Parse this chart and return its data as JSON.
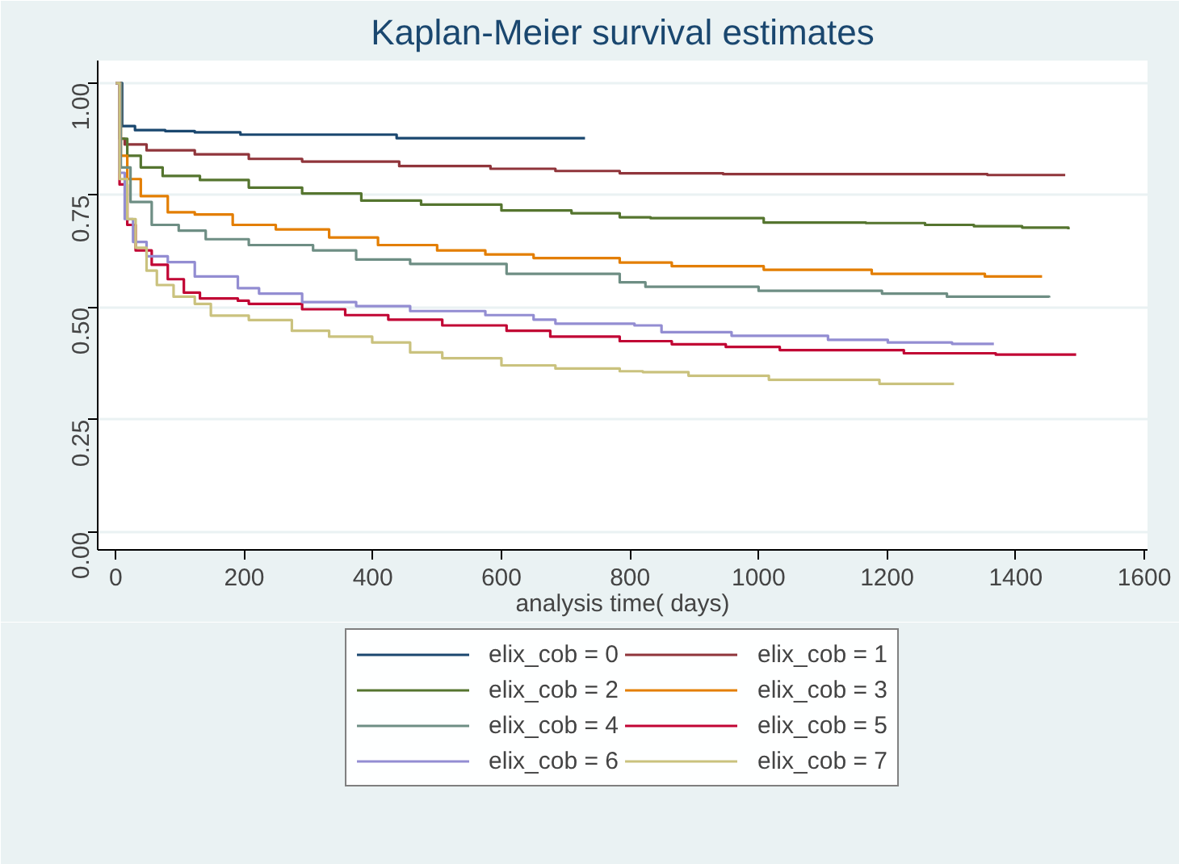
{
  "chart_data": {
    "type": "step",
    "title": "Kaplan-Meier survival estimates",
    "xlabel": "analysis time( days)",
    "xlim": [
      -28,
      1605
    ],
    "ylim": [
      -0.04,
      1.05
    ],
    "xticks": [
      0,
      200,
      400,
      600,
      800,
      1000,
      1200,
      1400,
      1600
    ],
    "yticks": [
      {
        "value": 0,
        "label": "0.00"
      },
      {
        "value": 0.25,
        "label": "0.25"
      },
      {
        "value": 0.5,
        "label": "0.50"
      },
      {
        "value": 0.75,
        "label": "0.75"
      },
      {
        "value": 1,
        "label": "1.00"
      }
    ],
    "grid": "y",
    "legend": "bottom",
    "line_style": "solid",
    "series": [
      {
        "name": "elix_cob = 0",
        "color": "#1a476f",
        "x": [
          0,
          10,
          30,
          77,
          123,
          194,
          437,
          730
        ],
        "values": [
          1,
          0.904,
          0.895,
          0.893,
          0.89,
          0.885,
          0.877,
          0.877
        ]
      },
      {
        "name": "elix_cob = 1",
        "color": "#90353b",
        "x": [
          0,
          6,
          14,
          48,
          123,
          207,
          290,
          441,
          583,
          684,
          784,
          945,
          1356,
          1477
        ],
        "values": [
          1,
          0.876,
          0.863,
          0.85,
          0.841,
          0.831,
          0.825,
          0.815,
          0.809,
          0.804,
          0.799,
          0.797,
          0.795,
          0.795
        ]
      },
      {
        "name": "elix_cob = 2",
        "color": "#55752f",
        "x": [
          0,
          6,
          18,
          39,
          73,
          131,
          207,
          290,
          382,
          475,
          600,
          709,
          784,
          832,
          1008,
          1167,
          1259,
          1335,
          1410,
          1482
        ],
        "values": [
          1,
          0.876,
          0.838,
          0.812,
          0.793,
          0.784,
          0.767,
          0.754,
          0.738,
          0.729,
          0.716,
          0.71,
          0.701,
          0.699,
          0.689,
          0.688,
          0.684,
          0.681,
          0.678,
          0.674
        ]
      },
      {
        "name": "elix_cob = 3",
        "color": "#e37e00",
        "x": [
          0,
          8,
          18,
          39,
          81,
          123,
          182,
          249,
          332,
          408,
          500,
          575,
          650,
          784,
          865,
          1008,
          1176,
          1352,
          1441
        ],
        "values": [
          1,
          0.838,
          0.786,
          0.748,
          0.712,
          0.707,
          0.684,
          0.674,
          0.656,
          0.639,
          0.627,
          0.618,
          0.61,
          0.6,
          0.592,
          0.584,
          0.575,
          0.569,
          0.569
        ]
      },
      {
        "name": "elix_cob = 4",
        "color": "#6e8e84",
        "x": [
          0,
          8,
          23,
          56,
          98,
          140,
          207,
          307,
          374,
          458,
          608,
          784,
          824,
          1000,
          1192,
          1293,
          1452
        ],
        "values": [
          1,
          0.812,
          0.735,
          0.684,
          0.671,
          0.652,
          0.639,
          0.627,
          0.607,
          0.597,
          0.575,
          0.556,
          0.546,
          0.537,
          0.531,
          0.524,
          0.522
        ]
      },
      {
        "name": "elix_cob = 5",
        "color": "#c10534",
        "x": [
          0,
          6,
          18,
          31,
          56,
          81,
          106,
          131,
          190,
          207,
          290,
          357,
          424,
          508,
          608,
          676,
          784,
          865,
          949,
          1033,
          1226,
          1369,
          1494
        ],
        "values": [
          1,
          0.774,
          0.684,
          0.627,
          0.595,
          0.563,
          0.533,
          0.52,
          0.515,
          0.508,
          0.496,
          0.483,
          0.473,
          0.46,
          0.448,
          0.435,
          0.425,
          0.418,
          0.412,
          0.405,
          0.398,
          0.395,
          0.395
        ]
      },
      {
        "name": "elix_cob = 6",
        "color": "#938dd2",
        "x": [
          0,
          6,
          14,
          27,
          48,
          81,
          123,
          190,
          223,
          290,
          374,
          458,
          575,
          650,
          684,
          807,
          849,
          958,
          1108,
          1201,
          1301,
          1366
        ],
        "values": [
          1,
          0.8,
          0.697,
          0.646,
          0.614,
          0.601,
          0.569,
          0.543,
          0.531,
          0.512,
          0.503,
          0.492,
          0.483,
          0.473,
          0.464,
          0.46,
          0.445,
          0.437,
          0.428,
          0.422,
          0.419,
          0.419
        ]
      },
      {
        "name": "elix_cob = 7",
        "color": "#cac27e",
        "x": [
          0,
          6,
          18,
          31,
          48,
          64,
          90,
          123,
          148,
          207,
          274,
          332,
          399,
          458,
          508,
          600,
          684,
          784,
          820,
          891,
          1016,
          1188,
          1304
        ],
        "values": [
          1,
          0.786,
          0.697,
          0.633,
          0.582,
          0.55,
          0.524,
          0.508,
          0.482,
          0.472,
          0.448,
          0.435,
          0.422,
          0.4,
          0.387,
          0.371,
          0.364,
          0.358,
          0.356,
          0.348,
          0.339,
          0.33,
          0.33
        ]
      }
    ]
  }
}
